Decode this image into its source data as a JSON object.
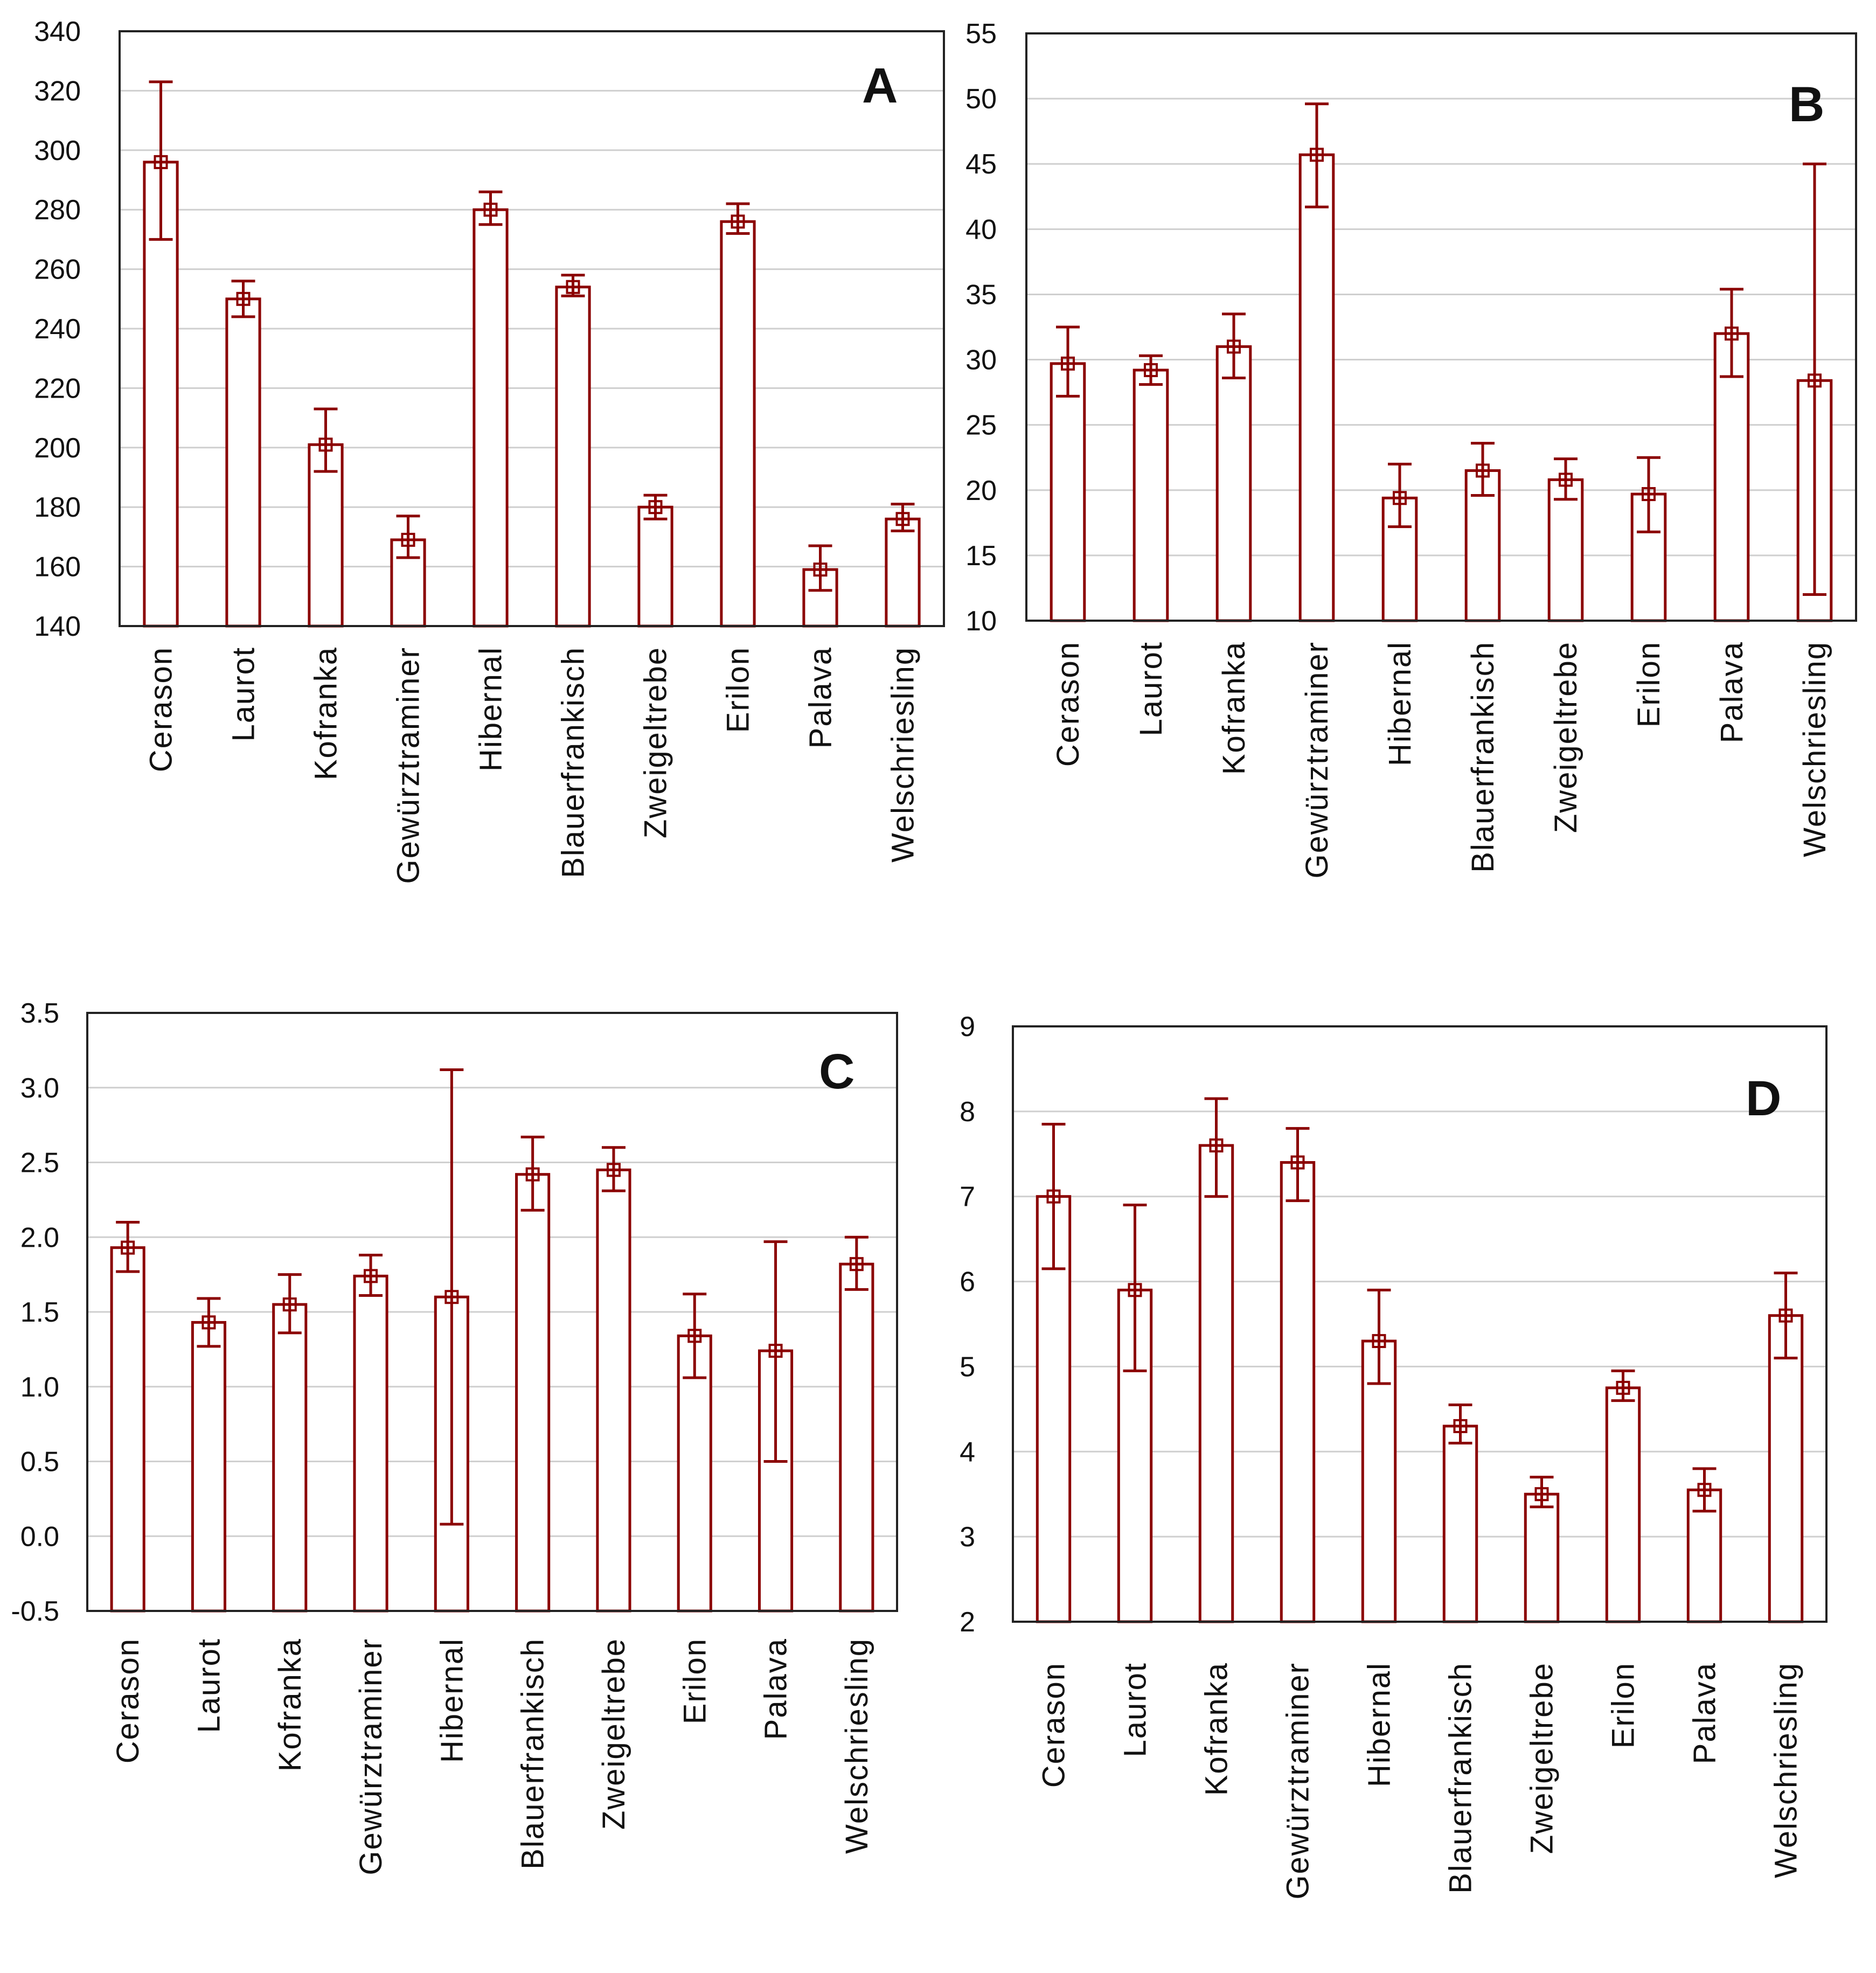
{
  "colors": {
    "series": "#8b0000",
    "grid": "#cfcfcf",
    "frame": "#222222"
  },
  "chart_data": [
    {
      "panel": "A",
      "type": "bar",
      "title": "A",
      "categories": [
        "Cerason",
        "Laurot",
        "Kofranka",
        "Gewürztraminer",
        "Hibernal",
        "Blauerfrankisch",
        "Zweigeltrebe",
        "Erilon",
        "Palava",
        "Welschriesling"
      ],
      "values": [
        296,
        250,
        201,
        169,
        280,
        254,
        180,
        276,
        159,
        176
      ],
      "err_low": [
        270,
        244,
        192,
        163,
        275,
        251,
        176,
        272,
        152,
        172
      ],
      "err_high": [
        323,
        256,
        213,
        177,
        286,
        258,
        184,
        282,
        167,
        181
      ],
      "ylim": [
        140,
        340
      ],
      "yticks": [
        340,
        320,
        300,
        280,
        260,
        240,
        220,
        200,
        180,
        160,
        140
      ],
      "ytick_labels": [
        "340",
        "320",
        "300",
        "280",
        "260",
        "240",
        "220",
        "200",
        "180",
        "160",
        "140"
      ],
      "grid": true
    },
    {
      "panel": "B",
      "type": "bar",
      "title": "B",
      "categories": [
        "Cerason",
        "Laurot",
        "Kofranka",
        "Gewürztraminer",
        "Hibernal",
        "Blauerfrankisch",
        "Zweigeltrebe",
        "Erilon",
        "Palava",
        "Welschriesling"
      ],
      "values": [
        29.7,
        29.2,
        31.0,
        45.7,
        19.4,
        21.5,
        20.8,
        19.7,
        32.0,
        28.4
      ],
      "err_low": [
        27.2,
        28.1,
        28.6,
        41.7,
        17.2,
        19.6,
        19.3,
        16.8,
        28.7,
        12.0
      ],
      "err_high": [
        32.5,
        30.3,
        33.5,
        49.6,
        22.0,
        23.6,
        22.4,
        22.5,
        35.4,
        45.0
      ],
      "ylim": [
        10,
        55
      ],
      "yticks": [
        55,
        50,
        45,
        40,
        35,
        30,
        25,
        20,
        15,
        10
      ],
      "ytick_labels": [
        "55",
        "50",
        "45",
        "40",
        "35",
        "30",
        "25",
        "20",
        "15",
        "10"
      ],
      "grid": true
    },
    {
      "panel": "C",
      "type": "bar",
      "title": "C",
      "categories": [
        "Cerason",
        "Laurot",
        "Kofranka",
        "Gewürztraminer",
        "Hibernal",
        "Blauerfrankisch",
        "Zweigeltrebe",
        "Erilon",
        "Palava",
        "Welschriesling"
      ],
      "values": [
        1.93,
        1.43,
        1.55,
        1.74,
        1.6,
        2.42,
        2.45,
        1.34,
        1.24,
        1.82
      ],
      "err_low": [
        1.77,
        1.27,
        1.36,
        1.61,
        0.08,
        2.18,
        2.31,
        1.06,
        0.5,
        1.65
      ],
      "err_high": [
        2.1,
        1.59,
        1.75,
        1.88,
        3.12,
        2.67,
        2.6,
        1.62,
        1.97,
        2.0
      ],
      "ylim": [
        -0.5,
        3.5
      ],
      "yticks": [
        3.5,
        3.0,
        2.5,
        2.0,
        1.5,
        1.0,
        0.5,
        0.0,
        -0.5
      ],
      "ytick_labels": [
        "3.5",
        "3.0",
        "2.5",
        "2.0",
        "1.5",
        "1.0",
        "0.5",
        "0.0",
        "-0.5"
      ],
      "grid": true
    },
    {
      "panel": "D",
      "type": "bar",
      "title": "D",
      "categories": [
        "Cerason",
        "Laurot",
        "Kofranka",
        "Gewürztraminer",
        "Hibernal",
        "Blauerfrankisch",
        "Zweigeltrebe",
        "Erilon",
        "Palava",
        "Welschriesling"
      ],
      "values": [
        7.0,
        5.9,
        7.6,
        7.4,
        5.3,
        4.3,
        3.5,
        4.75,
        3.55,
        5.6
      ],
      "err_low": [
        6.15,
        4.95,
        7.0,
        6.95,
        4.8,
        4.1,
        3.35,
        4.6,
        3.3,
        5.1
      ],
      "err_high": [
        7.85,
        6.9,
        8.15,
        7.8,
        5.9,
        4.55,
        3.7,
        4.95,
        3.8,
        6.1
      ],
      "ylim": [
        2,
        9
      ],
      "yticks": [
        9,
        8,
        7,
        6,
        5,
        4,
        3,
        2
      ],
      "ytick_labels": [
        "9",
        "8",
        "7",
        "6",
        "5",
        "4",
        "3",
        "2"
      ],
      "grid": true
    }
  ]
}
